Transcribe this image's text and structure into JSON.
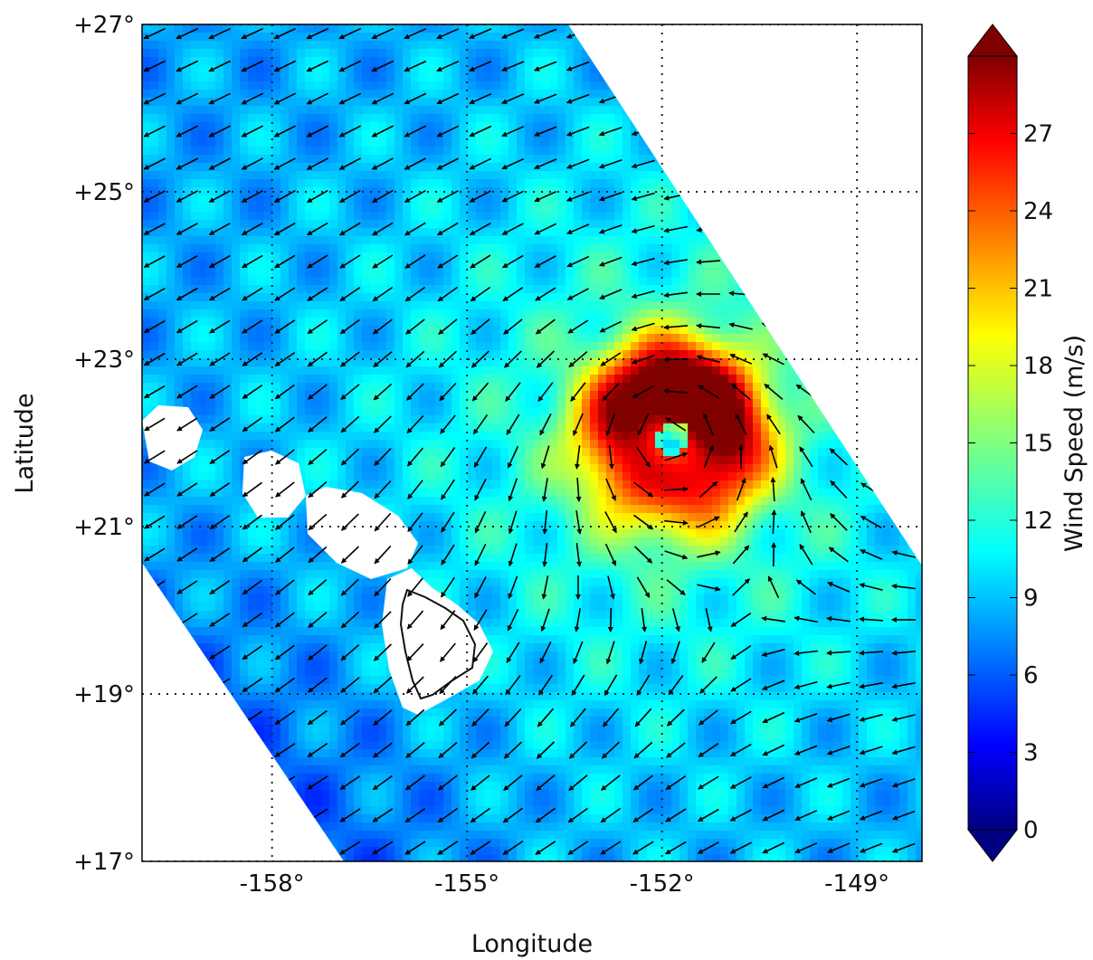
{
  "chart_data": {
    "type": "heatmap",
    "subtype": "wind-vector-map",
    "title": "",
    "xlabel": "Longitude",
    "ylabel": "Latitude",
    "xlim": [
      -160,
      -148
    ],
    "ylim": [
      17,
      27
    ],
    "x_ticks": [
      {
        "value": -158,
        "label": "-158°"
      },
      {
        "value": -155,
        "label": "-155°"
      },
      {
        "value": -152,
        "label": "-152°"
      },
      {
        "value": -149,
        "label": "-149°"
      }
    ],
    "y_ticks": [
      {
        "value": 17,
        "label": "+17°"
      },
      {
        "value": 19,
        "label": "+19°"
      },
      {
        "value": 21,
        "label": "+21°"
      },
      {
        "value": 23,
        "label": "+23°"
      },
      {
        "value": 25,
        "label": "+25°"
      },
      {
        "value": 27,
        "label": "+27°"
      }
    ],
    "grid": true,
    "colorbar": {
      "label": "Wind Speed (m/s)",
      "colormap": "jet",
      "range": [
        0,
        30
      ],
      "ticks": [
        0,
        3,
        6,
        9,
        12,
        15,
        18,
        21,
        24,
        27
      ],
      "extend": "both",
      "placement": "right"
    },
    "storm_center": {
      "lon": -151.9,
      "lat": 22.1
    },
    "background_wind_speed": 8,
    "peak_wind_speed": 30,
    "colors": {
      "land": "#ffffff",
      "arrows": "#000000",
      "grid": "#222222"
    }
  }
}
